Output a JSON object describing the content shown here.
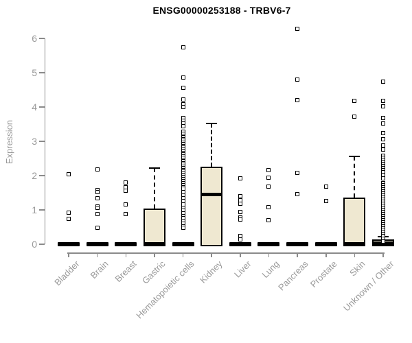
{
  "chart_data": {
    "type": "boxplot",
    "title": "ENSG00000253188 - TRBV6-7",
    "xlabel": "",
    "ylabel": "Expression",
    "ylim": [
      0,
      6.4
    ],
    "yticks": [
      0,
      1,
      2,
      3,
      4,
      5,
      6
    ],
    "grid": false,
    "legend": false,
    "colors": {
      "box_fill": "#efe8d1",
      "box_border": "#000000",
      "axis": "#8a8a8a",
      "tick_label": "#9a9a9a",
      "title": "#000000"
    },
    "categories": [
      "Bladder",
      "Brain",
      "Breast",
      "Gastric",
      "Hematopoietic cells",
      "Kidney",
      "Liver",
      "Lung",
      "Pancreas",
      "Prostate",
      "Skin",
      "Unknown / Other"
    ],
    "series": [
      {
        "name": "Bladder",
        "q1": 0,
        "median": 0,
        "q3": 0,
        "whisker_low": 0,
        "whisker_high": 0,
        "outliers": [
          2.04,
          0.92,
          0.74
        ]
      },
      {
        "name": "Brain",
        "q1": 0,
        "median": 0,
        "q3": 0,
        "whisker_low": 0,
        "whisker_high": 0,
        "outliers": [
          2.18,
          1.58,
          1.52,
          1.34,
          1.1,
          1.06,
          0.88,
          0.48
        ]
      },
      {
        "name": "Breast",
        "q1": 0,
        "median": 0,
        "q3": 0,
        "whisker_low": 0,
        "whisker_high": 0,
        "outliers": [
          1.8,
          1.66,
          1.56,
          1.16,
          0.88
        ]
      },
      {
        "name": "Gastric",
        "q1": 0,
        "median": 0.02,
        "q3": 1.04,
        "whisker_low": 0,
        "whisker_high": 2.22,
        "outliers": []
      },
      {
        "name": "Hematopoietic cells",
        "q1": 0,
        "median": 0,
        "q3": 0,
        "whisker_low": 0,
        "whisker_high": 0,
        "outliers": [
          5.74,
          4.86,
          4.56,
          4.22,
          4.08,
          4.0,
          3.68,
          3.6,
          3.52,
          3.44,
          3.28,
          3.22,
          3.17,
          3.12,
          3.07,
          3.02,
          2.97,
          2.92,
          2.87,
          2.82,
          2.77,
          2.72,
          2.67,
          2.62,
          2.57,
          2.52,
          2.47,
          2.42,
          2.37,
          2.32,
          2.27,
          2.22,
          2.17,
          2.12,
          2.08,
          2.02,
          1.96,
          1.9,
          1.84,
          1.78,
          1.72,
          1.66,
          1.62,
          1.52,
          1.42,
          1.34,
          1.26,
          1.16,
          1.06,
          0.98,
          0.9,
          0.82,
          0.76,
          0.68,
          0.6,
          0.52,
          0.48
        ]
      },
      {
        "name": "Kidney",
        "q1": 0,
        "median": 1.46,
        "q3": 2.26,
        "whisker_low": 0,
        "whisker_high": 3.52,
        "outliers": []
      },
      {
        "name": "Liver",
        "q1": 0,
        "median": 0,
        "q3": 0,
        "whisker_low": 0,
        "whisker_high": 0,
        "outliers": [
          1.92,
          1.4,
          1.28,
          1.18,
          0.94,
          0.78,
          0.72,
          0.24,
          0.14
        ]
      },
      {
        "name": "Lung",
        "q1": 0,
        "median": 0,
        "q3": 0,
        "whisker_low": 0,
        "whisker_high": 0,
        "outliers": [
          2.16,
          1.94,
          1.68,
          1.08,
          0.7
        ]
      },
      {
        "name": "Pancreas",
        "q1": 0,
        "median": 0,
        "q3": 0,
        "whisker_low": 0,
        "whisker_high": 0,
        "outliers": [
          6.28,
          4.8,
          4.2,
          2.08,
          1.46
        ]
      },
      {
        "name": "Prostate",
        "q1": 0,
        "median": 0,
        "q3": 0,
        "whisker_low": 0,
        "whisker_high": 0,
        "outliers": [
          1.68,
          1.26
        ]
      },
      {
        "name": "Skin",
        "q1": 0,
        "median": 0.02,
        "q3": 1.36,
        "whisker_low": 0,
        "whisker_high": 2.56,
        "outliers": [
          4.18,
          3.72
        ]
      },
      {
        "name": "Unknown / Other",
        "q1": 0,
        "median": 0.03,
        "q3": 0.14,
        "whisker_low": 0,
        "whisker_high": 0.22,
        "outliers": [
          4.74,
          4.18,
          4.02,
          3.68,
          3.52,
          3.24,
          3.06,
          2.88,
          2.76,
          2.58,
          2.52,
          2.46,
          2.4,
          2.34,
          2.28,
          2.22,
          2.16,
          2.1,
          2.02,
          1.92,
          1.78,
          1.72,
          1.66,
          1.6,
          1.54,
          1.48,
          1.42,
          1.36,
          1.3,
          1.24,
          1.18,
          1.12,
          1.06,
          1.0,
          0.94,
          0.88,
          0.82,
          0.76,
          0.7,
          0.64,
          0.58,
          0.52,
          0.46,
          0.42,
          0.36,
          0.3,
          0.24,
          0.16,
          0.08
        ]
      }
    ]
  }
}
